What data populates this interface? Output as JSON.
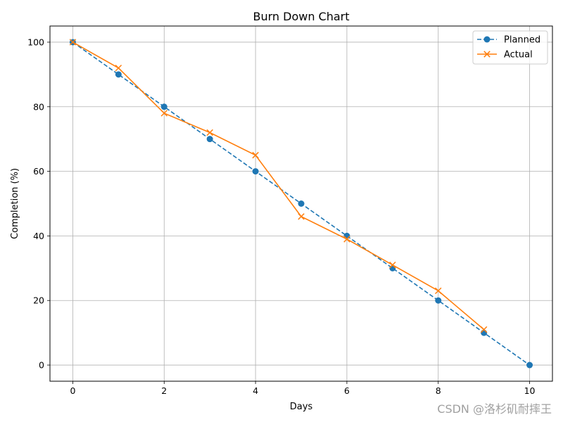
{
  "chart_data": {
    "type": "line",
    "title": "Burn Down Chart",
    "xlabel": "Days",
    "ylabel": "Completion (%)",
    "xlim": [
      -0.5,
      10.5
    ],
    "ylim": [
      -5,
      105
    ],
    "xticks": [
      0,
      2,
      4,
      6,
      8,
      10
    ],
    "yticks": [
      0,
      20,
      40,
      60,
      80,
      100
    ],
    "grid": true,
    "legend_position": "top-right",
    "series": [
      {
        "name": "Planned",
        "color": "#1f77b4",
        "line_style": "dashed",
        "marker": "circle",
        "x": [
          0,
          1,
          2,
          3,
          4,
          5,
          6,
          7,
          8,
          9,
          10
        ],
        "y": [
          100,
          90,
          80,
          70,
          60,
          50,
          40,
          30,
          20,
          10,
          0
        ]
      },
      {
        "name": "Actual",
        "color": "#ff7f0e",
        "line_style": "solid",
        "marker": "x",
        "x": [
          0,
          1,
          2,
          3,
          4,
          5,
          6,
          7,
          8,
          9
        ],
        "y": [
          100,
          92,
          78,
          72,
          65,
          46,
          39,
          31,
          23,
          11
        ]
      }
    ]
  },
  "watermark": "CSDN @洛杉矶耐摔王"
}
